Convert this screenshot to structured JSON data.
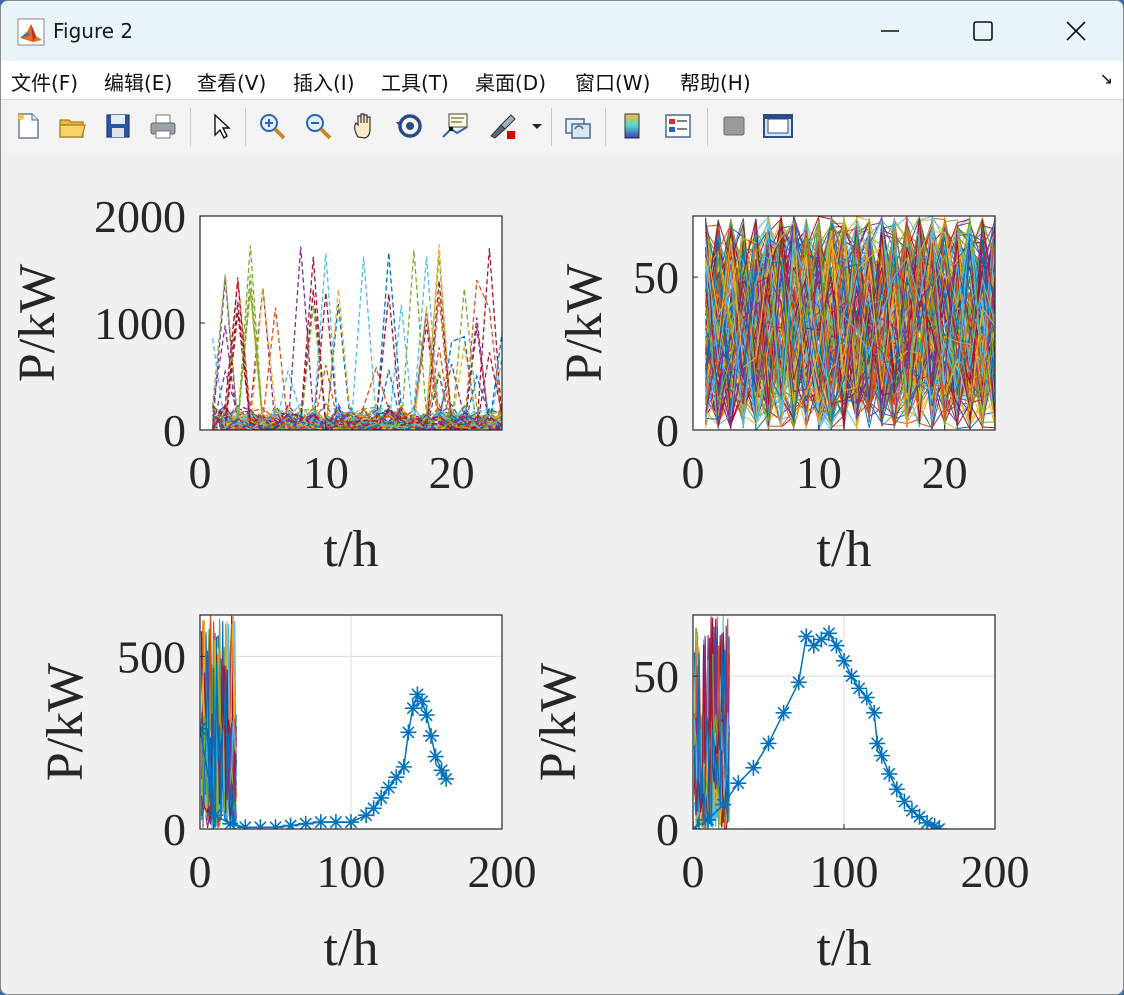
{
  "window": {
    "title": "Figure 2"
  },
  "menu": [
    "文件(F)",
    "编辑(E)",
    "查看(V)",
    "插入(I)",
    "工具(T)",
    "桌面(D)",
    "窗口(W)",
    "帮助(H)"
  ],
  "toolbar": [
    "new-file-icon",
    "open-folder-icon",
    "save-icon",
    "print-icon",
    "pointer-icon",
    "zoom-in-icon",
    "zoom-out-icon",
    "pan-icon",
    "rotate-3d-icon",
    "data-cursor-icon",
    "brush-icon",
    "link-plot-icon",
    "colorbar-icon",
    "legend-icon",
    "hide-plot-tools-icon",
    "show-plot-tools-icon"
  ],
  "colors": {
    "matlab_blue": "#0072BD",
    "palette": [
      "#0072BD",
      "#D95319",
      "#EDB120",
      "#7E2F8E",
      "#77AC30",
      "#4DBEEE",
      "#A2142F"
    ]
  },
  "chart_data": [
    {
      "type": "line",
      "style": "dashed multi-series",
      "xlabel": "t/h",
      "ylabel": "P/kW",
      "xlim": [
        0,
        24
      ],
      "ylim": [
        0,
        2000
      ],
      "xticks": [
        "0",
        "10",
        "20"
      ],
      "yticks": [
        "0",
        "1000",
        "2000"
      ],
      "grid": false
    },
    {
      "type": "line",
      "style": "solid multi-series",
      "xlabel": "t/h",
      "ylabel": "P/kW",
      "xlim": [
        0,
        24
      ],
      "ylim": [
        0,
        70
      ],
      "xticks": [
        "0",
        "10",
        "20"
      ],
      "yticks": [
        "0",
        "50"
      ],
      "grid": false
    },
    {
      "type": "line",
      "style": "lines plus asterisk series",
      "xlabel": "t/h",
      "ylabel": "P/kW",
      "xlim": [
        0,
        200
      ],
      "ylim": [
        0,
        620
      ],
      "xticks": [
        "0",
        "100",
        "200"
      ],
      "yticks": [
        "0",
        "500"
      ],
      "grid": true,
      "series": [
        {
          "marker": "*",
          "color": "#0072BD",
          "x": [
            0,
            10,
            20,
            30,
            40,
            50,
            60,
            70,
            80,
            90,
            100,
            110,
            115,
            120,
            125,
            130,
            135,
            138,
            141,
            144,
            147,
            150,
            153,
            156,
            160,
            163
          ],
          "y": [
            290,
            40,
            15,
            5,
            5,
            5,
            10,
            15,
            20,
            20,
            20,
            40,
            60,
            90,
            120,
            150,
            180,
            280,
            350,
            390,
            370,
            330,
            270,
            210,
            170,
            145
          ]
        }
      ]
    },
    {
      "type": "line",
      "style": "lines plus asterisk series",
      "xlabel": "t/h",
      "ylabel": "P/kW",
      "xlim": [
        0,
        200
      ],
      "ylim": [
        0,
        70
      ],
      "xticks": [
        "0",
        "100",
        "200"
      ],
      "yticks": [
        "0",
        "50"
      ],
      "grid": true,
      "series": [
        {
          "marker": "*",
          "color": "#0072BD",
          "x": [
            0,
            10,
            20,
            30,
            40,
            50,
            60,
            70,
            75,
            80,
            85,
            90,
            95,
            100,
            105,
            110,
            115,
            120,
            122,
            125,
            130,
            135,
            140,
            145,
            150,
            155,
            160,
            163
          ],
          "y": [
            0,
            3,
            8,
            15,
            20,
            28,
            38,
            48,
            63,
            60,
            62,
            64,
            60,
            55,
            50,
            46,
            43,
            38,
            28,
            24,
            18,
            13,
            9,
            6,
            4,
            2,
            1,
            0
          ]
        }
      ]
    }
  ]
}
